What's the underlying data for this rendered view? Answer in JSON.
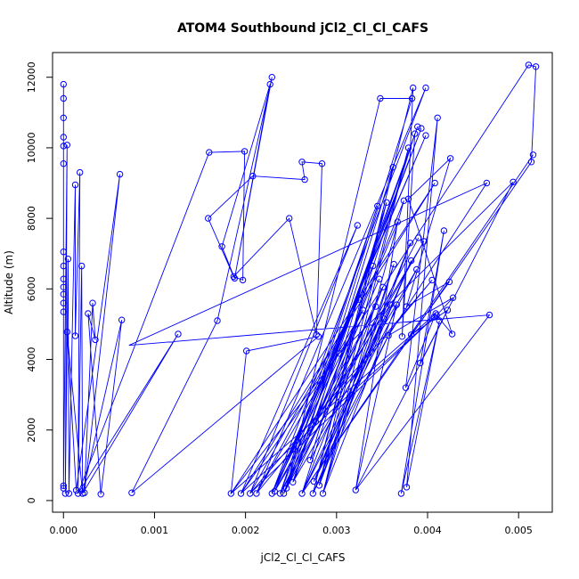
{
  "chart_data": {
    "type": "line",
    "title": "ATOM4 Southbound jCl2_Cl_Cl_CAFS",
    "xlabel": "jCl2_Cl_Cl_CAFS",
    "ylabel": "Altitude (m)",
    "xlim": [
      -0.00012,
      0.00537
    ],
    "ylim": [
      -330,
      12700
    ],
    "x_ticks": [
      0.0,
      0.001,
      0.002,
      0.003,
      0.004,
      0.005
    ],
    "x_tick_labels": [
      "0.000",
      "0.001",
      "0.002",
      "0.003",
      "0.004",
      "0.005"
    ],
    "y_ticks": [
      0,
      2000,
      4000,
      6000,
      8000,
      10000,
      12000
    ],
    "y_tick_labels": [
      "0",
      "2000",
      "4000",
      "6000",
      "8000",
      "10000",
      "12000"
    ],
    "series": [
      {
        "color": "#0000ff",
        "marker": "open-circle",
        "points": [
          [
            0.0,
            11800
          ],
          [
            0.0,
            11400
          ],
          [
            0.0,
            10850
          ],
          [
            0.0,
            10300
          ],
          [
            0.0,
            10050
          ],
          [
            0.0,
            9550
          ],
          [
            0.0,
            7050
          ],
          [
            0.0,
            6650
          ],
          [
            0.0,
            6280
          ],
          [
            0.0,
            6050
          ],
          [
            0.0,
            5850
          ],
          [
            0.0,
            5600
          ],
          [
            0.0,
            5350
          ],
          [
            0.0,
            420
          ],
          [
            0.0,
            350
          ],
          [
            2e-05,
            200
          ],
          [
            4e-05,
            10080
          ],
          [
            5e-05,
            6850
          ],
          [
            4e-05,
            4780
          ],
          [
            6e-05,
            200
          ],
          [
            0.00013,
            8950
          ],
          [
            0.00013,
            4670
          ],
          [
            0.00014,
            290
          ],
          [
            0.00016,
            200
          ],
          [
            0.00018,
            9300
          ],
          [
            0.0002,
            6650
          ],
          [
            0.00021,
            200
          ],
          [
            0.00023,
            220
          ],
          [
            0.00027,
            5300
          ],
          [
            0.00032,
            5600
          ],
          [
            0.00035,
            4560
          ],
          [
            0.00041,
            180
          ],
          [
            0.00062,
            9250
          ],
          [
            0.00064,
            5120
          ],
          [
            0.00075,
            220
          ],
          [
            0.00126,
            4720
          ],
          [
            0.0016,
            9870
          ],
          [
            0.00159,
            8000
          ],
          [
            0.00169,
            5100
          ],
          [
            0.00174,
            7200
          ],
          [
            0.00184,
            200
          ],
          [
            0.00187,
            6350
          ],
          [
            0.00188,
            6300
          ],
          [
            0.00195,
            200
          ],
          [
            0.00197,
            6250
          ],
          [
            0.00199,
            9900
          ],
          [
            0.00201,
            4240
          ],
          [
            0.00205,
            200
          ],
          [
            0.00208,
            9200
          ],
          [
            0.00212,
            200
          ],
          [
            0.00227,
            11800
          ],
          [
            0.00229,
            12000
          ],
          [
            0.00229,
            200
          ],
          [
            0.00232,
            260
          ],
          [
            0.00238,
            200
          ],
          [
            0.00242,
            200
          ],
          [
            0.00245,
            350
          ],
          [
            0.00248,
            8000
          ],
          [
            0.00252,
            520
          ],
          [
            0.00262,
            200
          ],
          [
            0.00262,
            9600
          ],
          [
            0.00265,
            9100
          ],
          [
            0.00271,
            1150
          ],
          [
            0.00274,
            200
          ],
          [
            0.00275,
            540
          ],
          [
            0.00277,
            2240
          ],
          [
            0.00278,
            4700
          ],
          [
            0.0028,
            4650
          ],
          [
            0.00281,
            430
          ],
          [
            0.00284,
            9550
          ],
          [
            0.00285,
            200
          ],
          [
            0.00303,
            4170
          ],
          [
            0.00321,
            300
          ],
          [
            0.00323,
            7800
          ],
          [
            0.00325,
            5700
          ],
          [
            0.00329,
            5400
          ],
          [
            0.0034,
            6650
          ],
          [
            0.00343,
            5500
          ],
          [
            0.00345,
            8350
          ],
          [
            0.00347,
            6280
          ],
          [
            0.00348,
            11400
          ],
          [
            0.00351,
            6050
          ],
          [
            0.00352,
            5150
          ],
          [
            0.00355,
            8450
          ],
          [
            0.00357,
            4680
          ],
          [
            0.00359,
            5550
          ],
          [
            0.00362,
            9450
          ],
          [
            0.00363,
            6700
          ],
          [
            0.00366,
            5550
          ],
          [
            0.00367,
            7900
          ],
          [
            0.00371,
            200
          ],
          [
            0.00372,
            4650
          ],
          [
            0.00374,
            8500
          ],
          [
            0.00376,
            3200
          ],
          [
            0.00377,
            5500
          ],
          [
            0.00377,
            380
          ],
          [
            0.00379,
            10000
          ],
          [
            0.00379,
            8550
          ],
          [
            0.00381,
            7300
          ],
          [
            0.00382,
            4700
          ],
          [
            0.00382,
            6800
          ],
          [
            0.00383,
            11400
          ],
          [
            0.00384,
            11700
          ],
          [
            0.00386,
            10400
          ],
          [
            0.00388,
            6550
          ],
          [
            0.00389,
            10600
          ],
          [
            0.0039,
            7450
          ],
          [
            0.00392,
            3900
          ],
          [
            0.00393,
            10550
          ],
          [
            0.00396,
            7350
          ],
          [
            0.00398,
            10350
          ],
          [
            0.00398,
            11700
          ],
          [
            0.00405,
            6250
          ],
          [
            0.00407,
            5200
          ],
          [
            0.00408,
            9000
          ],
          [
            0.00409,
            5300
          ],
          [
            0.0041,
            5250
          ],
          [
            0.00411,
            10850
          ],
          [
            0.00413,
            5100
          ],
          [
            0.00418,
            7650
          ],
          [
            0.00422,
            5400
          ],
          [
            0.00424,
            6200
          ],
          [
            0.00425,
            9700
          ],
          [
            0.00427,
            4720
          ],
          [
            0.00428,
            5750
          ],
          [
            0.00465,
            9000
          ],
          [
            0.00468,
            5260
          ],
          [
            0.00494,
            9030
          ],
          [
            0.00511,
            12350
          ],
          [
            0.00514,
            9600
          ],
          [
            0.00516,
            9800
          ],
          [
            0.00519,
            12300
          ]
        ],
        "path": [
          [
            0.0,
            11800
          ],
          [
            0.0,
            11400
          ],
          [
            0.0,
            10850
          ],
          [
            0.0,
            10300
          ],
          [
            0.0,
            9550
          ],
          [
            0.0,
            7050
          ],
          [
            0.0,
            6650
          ],
          [
            0.0,
            6280
          ],
          [
            0.0,
            6050
          ],
          [
            0.0,
            5850
          ],
          [
            0.0,
            5600
          ],
          [
            0.0,
            5350
          ],
          [
            0.0,
            420
          ],
          [
            0.0,
            350
          ],
          [
            4e-05,
            10080
          ],
          [
            2e-05,
            200
          ],
          [
            5e-05,
            6850
          ],
          [
            6e-05,
            200
          ],
          [
            0.00013,
            8950
          ],
          [
            0.00013,
            4670
          ],
          [
            0.00018,
            9300
          ],
          [
            0.00016,
            200
          ],
          [
            0.0002,
            6650
          ],
          [
            0.00021,
            200
          ],
          [
            4e-05,
            4780
          ],
          [
            0.00014,
            290
          ],
          [
            0.00062,
            9250
          ],
          [
            0.00023,
            220
          ],
          [
            0.00032,
            5600
          ],
          [
            0.00035,
            4560
          ],
          [
            0.00027,
            5300
          ],
          [
            0.00041,
            180
          ],
          [
            0.00064,
            5120
          ],
          [
            0.00021,
            200
          ],
          [
            0.00126,
            4720
          ],
          [
            0.00016,
            200
          ],
          [
            0.0016,
            9870
          ],
          [
            0.00199,
            9900
          ],
          [
            0.00197,
            6250
          ],
          [
            0.00187,
            6350
          ],
          [
            0.00159,
            8000
          ],
          [
            0.00208,
            9200
          ],
          [
            0.00265,
            9100
          ],
          [
            0.00262,
            9600
          ],
          [
            0.00284,
            9550
          ],
          [
            0.00278,
            4700
          ],
          [
            0.00248,
            8000
          ],
          [
            0.00187,
            6350
          ],
          [
            0.00188,
            6300
          ],
          [
            0.00174,
            7200
          ],
          [
            0.00227,
            11800
          ],
          [
            0.00188,
            6300
          ],
          [
            0.00229,
            12000
          ],
          [
            0.00169,
            5100
          ],
          [
            0.00075,
            220
          ],
          [
            0.0028,
            4650
          ],
          [
            0.00201,
            4240
          ],
          [
            0.00184,
            200
          ],
          [
            0.00303,
            4170
          ],
          [
            0.00195,
            200
          ],
          [
            0.00323,
            7800
          ],
          [
            0.00205,
            200
          ],
          [
            0.00325,
            5700
          ],
          [
            0.00212,
            200
          ],
          [
            0.00329,
            5400
          ],
          [
            0.00229,
            200
          ],
          [
            0.0034,
            6650
          ],
          [
            0.00232,
            260
          ],
          [
            0.00343,
            5500
          ],
          [
            0.00238,
            200
          ],
          [
            0.00345,
            8350
          ],
          [
            0.00242,
            200
          ],
          [
            0.00347,
            6280
          ],
          [
            0.00245,
            350
          ],
          [
            0.00348,
            11400
          ],
          [
            0.00383,
            11400
          ],
          [
            0.00252,
            520
          ],
          [
            0.00351,
            6050
          ],
          [
            0.00262,
            200
          ],
          [
            0.00352,
            5150
          ],
          [
            0.00271,
            1150
          ],
          [
            0.00355,
            8450
          ],
          [
            0.00274,
            200
          ],
          [
            0.00357,
            4680
          ],
          [
            0.00275,
            540
          ],
          [
            0.00359,
            5550
          ],
          [
            0.00277,
            2240
          ],
          [
            0.00362,
            9450
          ],
          [
            0.00281,
            430
          ],
          [
            0.00363,
            6700
          ],
          [
            0.00285,
            200
          ],
          [
            0.00366,
            5550
          ],
          [
            0.00321,
            300
          ],
          [
            0.00367,
            7900
          ],
          [
            0.00277,
            2240
          ],
          [
            0.00374,
            8500
          ],
          [
            0.00285,
            200
          ],
          [
            0.00379,
            10000
          ],
          [
            0.00281,
            430
          ],
          [
            0.00381,
            7300
          ],
          [
            0.00275,
            540
          ],
          [
            0.00382,
            6800
          ],
          [
            0.00274,
            200
          ],
          [
            0.00384,
            11700
          ],
          [
            0.00372,
            4650
          ],
          [
            0.00386,
            10400
          ],
          [
            0.00262,
            200
          ],
          [
            0.00388,
            6550
          ],
          [
            0.00252,
            520
          ],
          [
            0.00389,
            10600
          ],
          [
            0.00245,
            350
          ],
          [
            0.0039,
            7450
          ],
          [
            0.00242,
            200
          ],
          [
            0.00393,
            10550
          ],
          [
            0.00238,
            200
          ],
          [
            0.00396,
            7350
          ],
          [
            0.00232,
            260
          ],
          [
            0.00398,
            10350
          ],
          [
            0.00229,
            200
          ],
          [
            0.00398,
            11700
          ],
          [
            0.00212,
            200
          ],
          [
            0.00405,
            6250
          ],
          [
            0.00205,
            200
          ],
          [
            0.00407,
            5200
          ],
          [
            0.00195,
            200
          ],
          [
            0.00408,
            9000
          ],
          [
            0.00184,
            200
          ],
          [
            0.00409,
            5300
          ],
          [
            0.00376,
            3200
          ],
          [
            0.00411,
            10850
          ],
          [
            0.00377,
            380
          ],
          [
            0.00413,
            5100
          ],
          [
            0.00371,
            200
          ],
          [
            0.00418,
            7650
          ],
          [
            0.00392,
            3900
          ],
          [
            0.00422,
            5400
          ],
          [
            0.00382,
            4700
          ],
          [
            0.00424,
            6200
          ],
          [
            0.00377,
            5500
          ],
          [
            0.00425,
            9700
          ],
          [
            0.00379,
            8550
          ],
          [
            0.00427,
            4720
          ],
          [
            0.0041,
            5250
          ],
          [
            0.00428,
            5750
          ],
          [
            0.00357,
            4680
          ],
          [
            0.00465,
            9000
          ],
          [
            0.00072,
            4400
          ],
          [
            0.00468,
            5260
          ],
          [
            0.00321,
            300
          ],
          [
            0.00494,
            9030
          ],
          [
            0.00303,
            4170
          ],
          [
            0.00511,
            12350
          ],
          [
            0.00519,
            12300
          ],
          [
            0.00514,
            9600
          ],
          [
            0.00262,
            200
          ],
          [
            0.00516,
            9800
          ],
          [
            0.00262,
            200
          ]
        ]
      }
    ],
    "grid": false,
    "legend": "none"
  }
}
